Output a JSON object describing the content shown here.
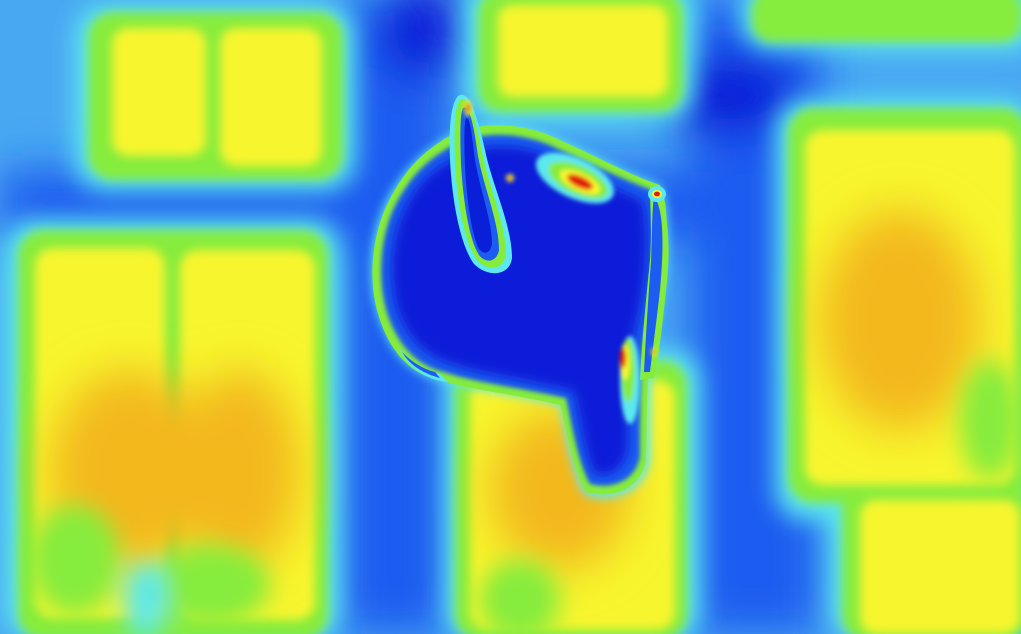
{
  "scene": {
    "subject": "teapot",
    "colormap": "jet",
    "colors": {
      "dark_blue": "#0a1fd8",
      "blue": "#1c5cf0",
      "sky": "#49a8f2",
      "cyan": "#5ce8ee",
      "green": "#86ec3c",
      "yellow": "#f7f52e",
      "amber": "#f3b81e",
      "red": "#e21a10"
    }
  }
}
